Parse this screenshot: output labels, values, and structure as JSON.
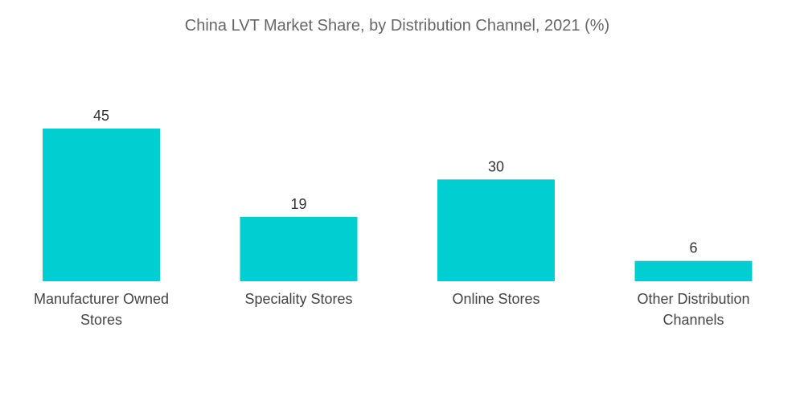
{
  "chart_data": {
    "type": "bar",
    "title": "China LVT Market Share, by Distribution Channel, 2021 (%)",
    "xlabel": "",
    "ylabel": "",
    "categories": [
      [
        "Manufacturer Owned",
        "Stores"
      ],
      [
        "Speciality Stores"
      ],
      [
        "Online Stores"
      ],
      [
        "Other Distribution",
        "Channels"
      ]
    ],
    "values": [
      45,
      19,
      30,
      6
    ],
    "ylim": [
      0,
      45
    ],
    "grid": false,
    "legend": "none",
    "colors": {
      "bar": "#00CED1"
    }
  }
}
